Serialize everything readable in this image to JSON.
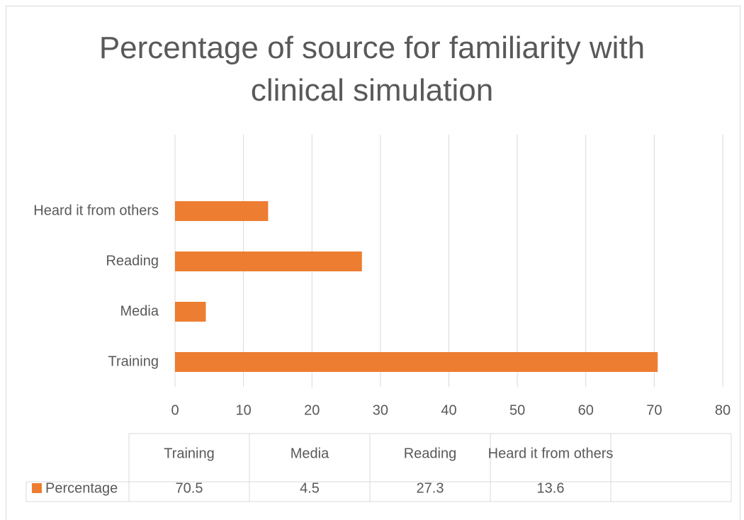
{
  "chart_data": {
    "type": "bar",
    "orientation": "horizontal",
    "title": "Percentage of source for familiarity with clinical simulation",
    "categories": [
      "Training",
      "Media",
      "Reading",
      "Heard it from others"
    ],
    "series": [
      {
        "name": "Percentage",
        "color": "#ed7d31",
        "values": [
          70.5,
          4.5,
          27.3,
          13.6
        ]
      }
    ],
    "xlim": [
      0,
      80
    ],
    "xticks": [
      0,
      10,
      20,
      30,
      40,
      50,
      60,
      70,
      80
    ],
    "grid": true,
    "data_table": true
  }
}
